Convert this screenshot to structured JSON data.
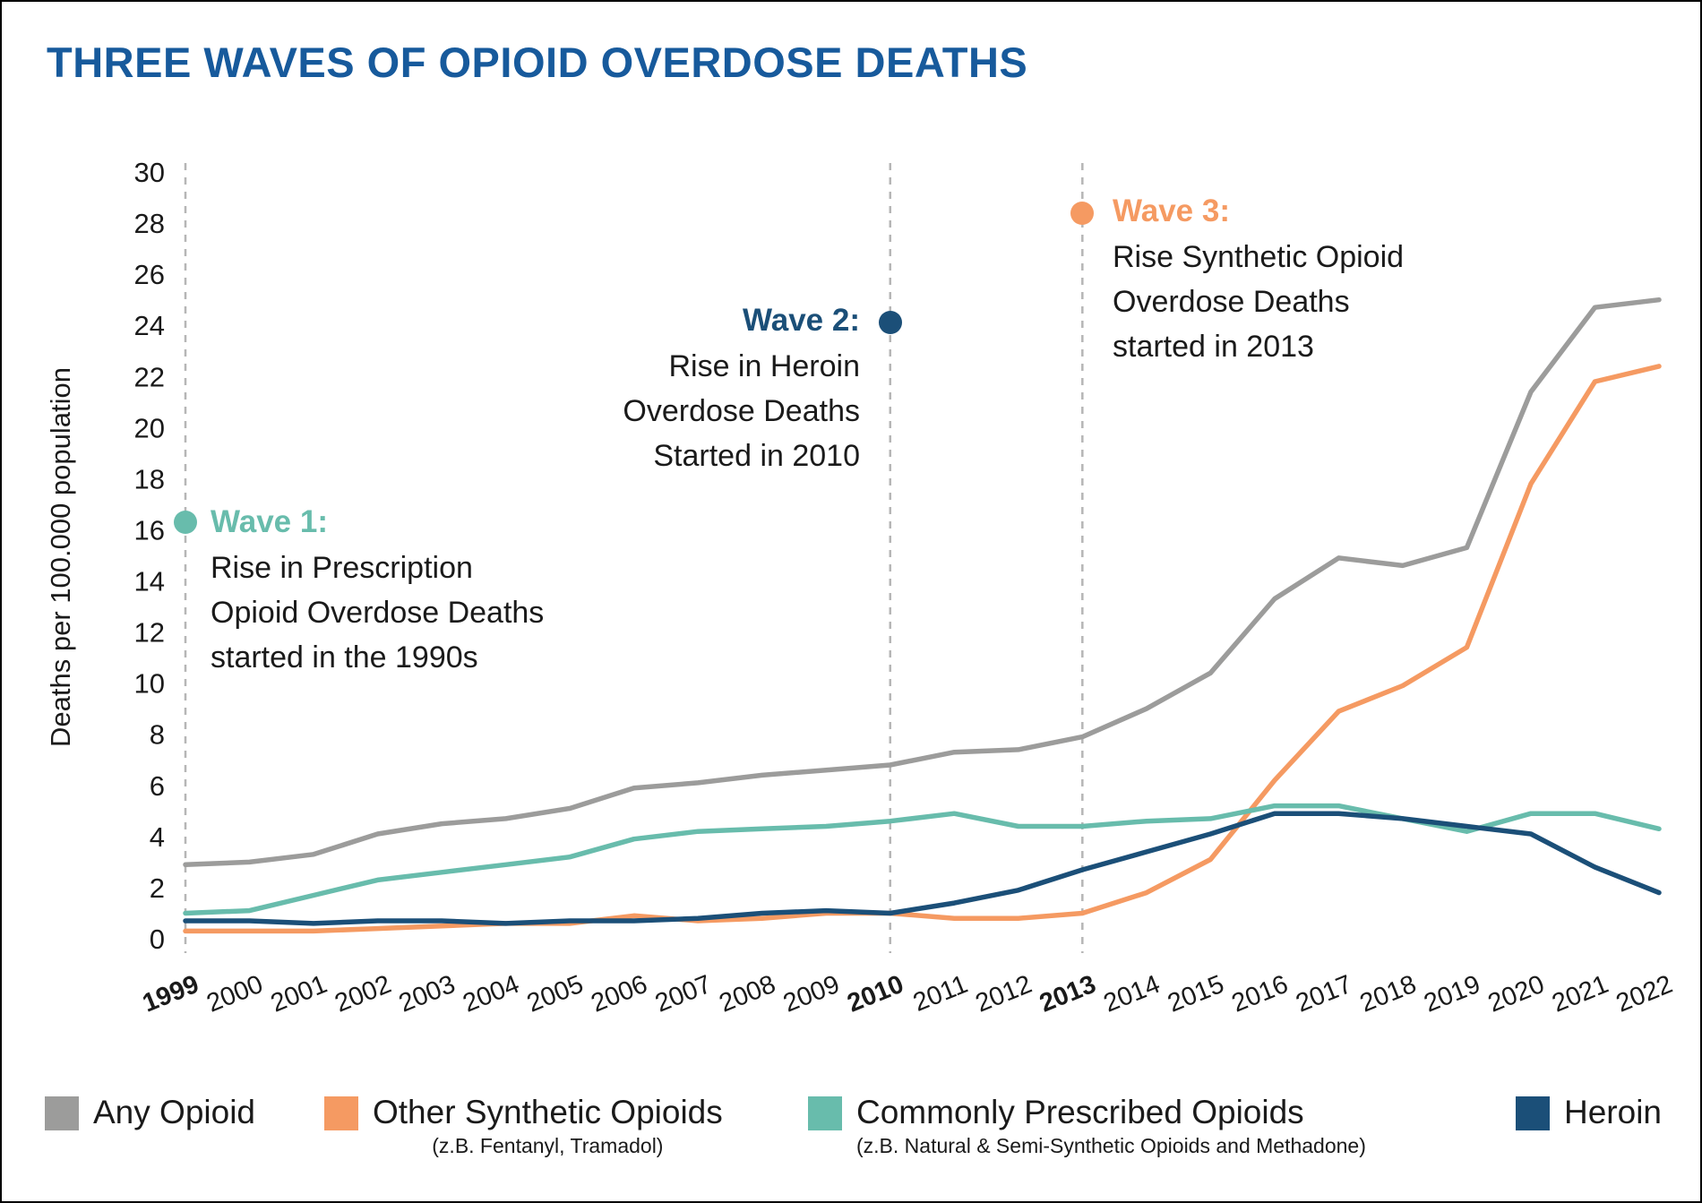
{
  "colors": {
    "title": "#175a9c",
    "axis_text": "#1a1a1a"
  },
  "chart_data": {
    "type": "line",
    "title": "THREE WAVES OF OPIOID OVERDOSE DEATHS",
    "xlabel": "",
    "ylabel": "Deaths per 100.000 population",
    "ylim": [
      0,
      30
    ],
    "ytick_step": 2,
    "grid": false,
    "legend_position": "bottom",
    "dashed_vlines": [
      1999,
      2010,
      2013
    ],
    "bold_x_ticks": [
      1999,
      2010,
      2013
    ],
    "dashed_line_color": "#b6b6b6",
    "x": [
      1999,
      2000,
      2001,
      2002,
      2003,
      2004,
      2005,
      2006,
      2007,
      2008,
      2009,
      2010,
      2011,
      2012,
      2013,
      2014,
      2015,
      2016,
      2017,
      2018,
      2019,
      2020,
      2021,
      2022
    ],
    "series": [
      {
        "name": "Any Opioid",
        "sublabel": "",
        "color": "#9c9c9b",
        "values": [
          2.9,
          3.0,
          3.3,
          4.1,
          4.5,
          4.7,
          5.1,
          5.9,
          6.1,
          6.4,
          6.6,
          6.8,
          7.3,
          7.4,
          7.9,
          9.0,
          10.4,
          13.3,
          14.9,
          14.6,
          15.3,
          21.4,
          24.7,
          25.0
        ]
      },
      {
        "name": "Other Synthetic Opioids",
        "sublabel": "(z.B. Fentanyl, Tramadol)",
        "color": "#f59a62",
        "values": [
          0.3,
          0.3,
          0.3,
          0.4,
          0.5,
          0.6,
          0.6,
          0.9,
          0.7,
          0.8,
          1.0,
          1.0,
          0.8,
          0.8,
          1.0,
          1.8,
          3.1,
          6.2,
          8.9,
          9.9,
          11.4,
          17.8,
          21.8,
          22.4
        ]
      },
      {
        "name": "Commonly Prescribed Opioids",
        "sublabel": "(z.B. Natural & Semi-Synthetic Opioids and Methadone)",
        "color": "#68bcac",
        "values": [
          1.0,
          1.1,
          1.7,
          2.3,
          2.6,
          2.9,
          3.2,
          3.9,
          4.2,
          4.3,
          4.4,
          4.6,
          4.9,
          4.4,
          4.4,
          4.6,
          4.7,
          5.2,
          5.2,
          4.7,
          4.2,
          4.9,
          4.9,
          4.3
        ]
      },
      {
        "name": "Heroin",
        "sublabel": "",
        "color": "#1b4f78",
        "values": [
          0.7,
          0.7,
          0.6,
          0.7,
          0.7,
          0.6,
          0.7,
          0.7,
          0.8,
          1.0,
          1.1,
          1.0,
          1.4,
          1.9,
          2.7,
          3.4,
          4.1,
          4.9,
          4.9,
          4.7,
          4.4,
          4.1,
          2.8,
          1.8
        ]
      }
    ],
    "annotations": [
      {
        "id": "wave1",
        "title": "Wave 1:",
        "body": "Rise in Prescription\nOpioid Overdose Deaths\nstarted in the 1990s",
        "color": "#68bcac",
        "anchor_x": 1999,
        "anchor_y": 16.3
      },
      {
        "id": "wave2",
        "title": "Wave 2:",
        "body": "Rise in Heroin\nOverdose Deaths\nStarted in 2010",
        "color": "#1b4f78",
        "anchor_x": 2010,
        "anchor_y": 24.1
      },
      {
        "id": "wave3",
        "title": "Wave 3:",
        "body": "Rise Synthetic Opioid\nOverdose Deaths\nstarted in 2013",
        "color": "#f59a62",
        "anchor_x": 2013,
        "anchor_y": 28.4
      }
    ]
  }
}
